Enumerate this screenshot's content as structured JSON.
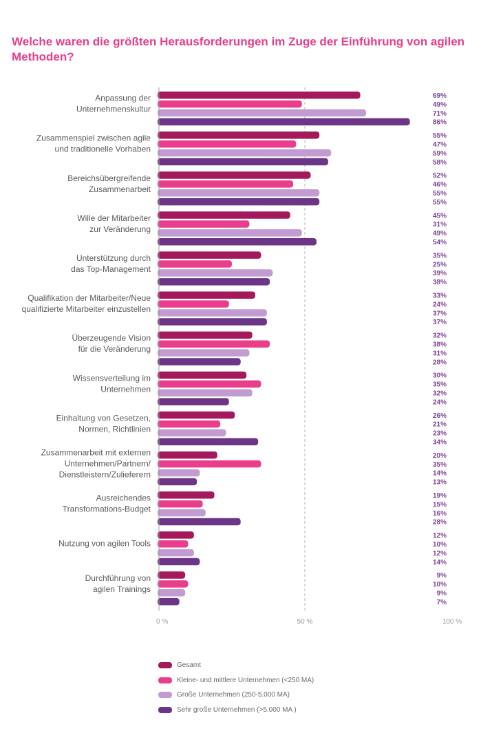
{
  "chart_data": {
    "type": "bar",
    "orientation": "horizontal",
    "title": "Welche waren die größten Herausforderungen im Zuge der Einführung von agilen Methoden?",
    "categories": [
      "Anpassung der\nUnternehmenskultur",
      "Zusammenspiel zwischen agile\nund traditionelle Vorhaben",
      "Bereichsübergreifende\nZusammenarbeit",
      "Wille der Mitarbeiter\nzur Veränderung",
      "Unterstützung durch\ndas Top-Management",
      "Qualifikation der Mitarbeiter/Neue\nqualifizierte Mitarbeiter einzustellen",
      "Überzeugende Vision\nfür die Veränderung",
      "Wissensverteilung im\nUnternehmen",
      "Einhaltung von Gesetzen,\nNormen, Richtlinien",
      "Zusammenarbeit mit externen\nUnternehmen/Partnern/\nDienstleistern/Zulieferern",
      "Ausreichendes\nTransformations-Budget",
      "Nutzung von agilen Tools",
      "Durchführung von\nagilen Trainings"
    ],
    "series": [
      {
        "name": "Gesamt",
        "color": "#a3195b",
        "values": [
          69,
          55,
          52,
          45,
          35,
          33,
          32,
          30,
          26,
          20,
          19,
          12,
          9
        ]
      },
      {
        "name": "Kleine- und mittlere Unternehmen (<250 MA)",
        "color": "#e83e8c",
        "values": [
          49,
          47,
          46,
          31,
          25,
          24,
          38,
          35,
          21,
          35,
          15,
          10,
          10
        ]
      },
      {
        "name": "Große Unternehmen (250-5.000 MA)",
        "color": "#c39bd3",
        "values": [
          71,
          59,
          55,
          49,
          39,
          37,
          31,
          32,
          23,
          14,
          16,
          12,
          9
        ]
      },
      {
        "name": "Sehr große Unternehmen (>5.000 MA )",
        "color": "#6d3587",
        "values": [
          86,
          58,
          55,
          54,
          38,
          37,
          28,
          24,
          34,
          13,
          28,
          14,
          7
        ]
      }
    ],
    "xlim": [
      0,
      100
    ],
    "ticks": [
      "0 %",
      "50 %",
      "100 %"
    ],
    "value_suffix": "%",
    "label_color": "#7b3f8f",
    "axis_color": "#9a9a9a",
    "reference_line_at": 50,
    "legend_position": "bottom-left"
  }
}
